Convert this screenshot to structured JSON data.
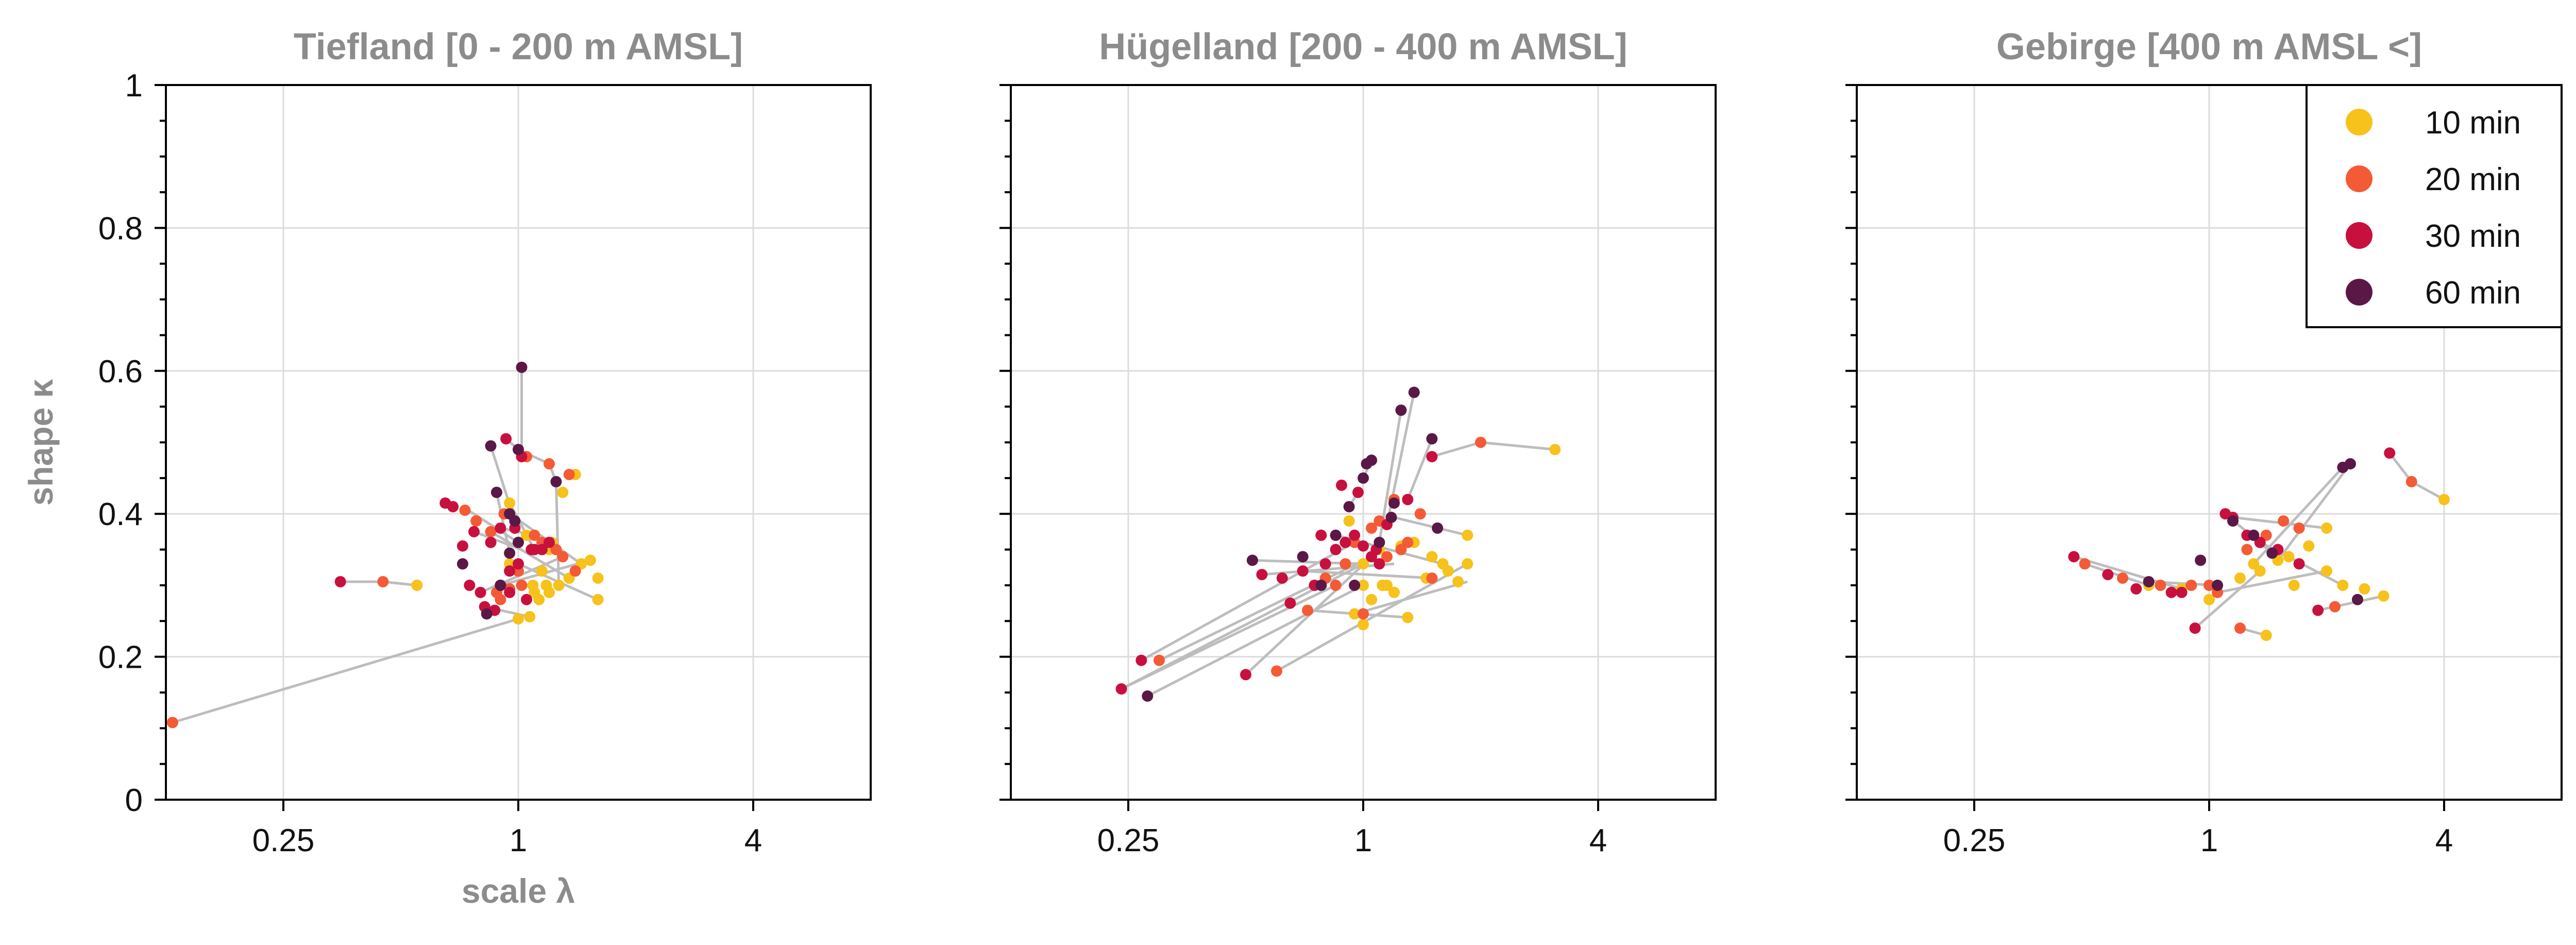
{
  "colors": {
    "10 min": "#f6c21b",
    "20 min": "#f45a35",
    "30 min": "#c8103f",
    "60 min": "#5a1846",
    "grid": "#dcdcdc",
    "link": "#bdbdbd",
    "title": "#8c8c8c"
  },
  "chart_data": [
    {
      "type": "scatter",
      "title": "Tiefland [0 - 200 m AMSL]",
      "xlabel": "scale λ",
      "ylabel": "shape κ",
      "xscale": "log2",
      "xlim": [
        0.125,
        8
      ],
      "ylim": [
        0,
        1
      ],
      "xticks": [
        0.25,
        1,
        4
      ],
      "xtick_labels": [
        "0.25",
        "1",
        "4"
      ],
      "yticks": [
        0,
        0.2,
        0.4,
        0.6,
        0.8,
        1
      ],
      "ytick_labels": [
        "0",
        "0.2",
        "0.4",
        "0.6",
        "0.8",
        "1"
      ],
      "grid": true,
      "series": [
        {
          "name": "10 min",
          "x": [
            1.0,
            1.07,
            1.13,
            1.2,
            1.27,
            1.35,
            1.45,
            1.53,
            1.15,
            1.09,
            1.22,
            1.3,
            0.95,
            1.05,
            1.6,
            1.4,
            0.55,
            1.2,
            0.95,
            1.6,
            1.1,
            1.18
          ],
          "y": [
            0.253,
            0.256,
            0.28,
            0.29,
            0.3,
            0.31,
            0.33,
            0.335,
            0.32,
            0.3,
            0.36,
            0.43,
            0.415,
            0.37,
            0.28,
            0.455,
            0.3,
            0.35,
            0.33,
            0.31,
            0.29,
            0.3
          ]
        },
        {
          "name": "20 min",
          "x": [
            0.13,
            0.45,
            0.73,
            0.78,
            0.85,
            0.9,
            1.0,
            1.1,
            1.25,
            1.2,
            1.35,
            1.05,
            0.92,
            1.3,
            1.15,
            1.4,
            0.95,
            1.02,
            0.88
          ],
          "y": [
            0.108,
            0.305,
            0.405,
            0.39,
            0.375,
            0.28,
            0.32,
            0.37,
            0.35,
            0.47,
            0.455,
            0.48,
            0.4,
            0.34,
            0.36,
            0.32,
            0.295,
            0.3,
            0.29
          ]
        },
        {
          "name": "30 min",
          "x": [
            0.35,
            0.65,
            0.68,
            0.72,
            0.75,
            0.8,
            0.82,
            0.87,
            0.9,
            0.95,
            1.0,
            1.05,
            1.1,
            1.15,
            1.2,
            0.98,
            1.02,
            0.93,
            0.85,
            0.77,
            0.9,
            1.08,
            0.95
          ],
          "y": [
            0.305,
            0.415,
            0.41,
            0.355,
            0.3,
            0.29,
            0.27,
            0.265,
            0.3,
            0.32,
            0.33,
            0.28,
            0.35,
            0.35,
            0.36,
            0.38,
            0.48,
            0.505,
            0.36,
            0.375,
            0.38,
            0.35,
            0.29
          ]
        },
        {
          "name": "60 min",
          "x": [
            0.83,
            0.9,
            0.95,
            1.0,
            1.02,
            0.98,
            0.72,
            0.88,
            0.95,
            1.25,
            1.0,
            0.85,
            0.9
          ],
          "y": [
            0.26,
            0.3,
            0.345,
            0.36,
            0.605,
            0.39,
            0.33,
            0.43,
            0.4,
            0.445,
            0.49,
            0.495,
            0.3
          ]
        }
      ],
      "links": [
        [
          [
            0.13,
            0.108
          ],
          [
            1.0,
            0.253
          ]
        ],
        [
          [
            1.02,
            0.605
          ],
          [
            1.02,
            0.48
          ]
        ],
        [
          [
            0.45,
            0.305
          ],
          [
            0.55,
            0.3
          ]
        ],
        [
          [
            0.35,
            0.305
          ],
          [
            0.45,
            0.305
          ]
        ],
        [
          [
            0.72,
            0.41
          ],
          [
            1.0,
            0.36
          ]
        ],
        [
          [
            1.2,
            0.47
          ],
          [
            1.25,
            0.445
          ]
        ],
        [
          [
            1.0,
            0.49
          ],
          [
            1.2,
            0.47
          ]
        ],
        [
          [
            1.25,
            0.445
          ],
          [
            1.27,
            0.3
          ]
        ],
        [
          [
            0.85,
            0.375
          ],
          [
            1.35,
            0.31
          ]
        ],
        [
          [
            0.9,
            0.3
          ],
          [
            1.53,
            0.335
          ]
        ],
        [
          [
            0.95,
            0.4
          ],
          [
            1.45,
            0.33
          ]
        ],
        [
          [
            0.8,
            0.29
          ],
          [
            1.3,
            0.34
          ]
        ],
        [
          [
            0.82,
            0.27
          ],
          [
            1.07,
            0.256
          ]
        ],
        [
          [
            1.0,
            0.33
          ],
          [
            1.6,
            0.28
          ]
        ],
        [
          [
            0.88,
            0.43
          ],
          [
            0.95,
            0.345
          ]
        ],
        [
          [
            0.93,
            0.505
          ],
          [
            1.05,
            0.48
          ]
        ],
        [
          [
            0.85,
            0.495
          ],
          [
            0.98,
            0.39
          ]
        ],
        [
          [
            0.77,
            0.375
          ],
          [
            1.02,
            0.35
          ]
        ],
        [
          [
            0.9,
            0.38
          ],
          [
            1.1,
            0.37
          ]
        ],
        [
          [
            0.95,
            0.415
          ],
          [
            1.1,
            0.35
          ]
        ]
      ]
    },
    {
      "type": "scatter",
      "title": "Hügelland [200 - 400 m AMSL]",
      "xlabel": "",
      "ylabel": "",
      "xscale": "log2",
      "xlim": [
        0.125,
        8
      ],
      "ylim": [
        0,
        1
      ],
      "xticks": [
        0.25,
        1,
        4
      ],
      "xtick_labels": [
        "0.25",
        "1",
        "4"
      ],
      "yticks": [
        0,
        0.2,
        0.4,
        0.6,
        0.8,
        1
      ],
      "ytick_labels": [],
      "grid": true,
      "series": [
        {
          "name": "10 min",
          "x": [
            0.95,
            1.0,
            1.05,
            1.12,
            1.2,
            1.3,
            1.45,
            1.6,
            1.75,
            1.85,
            1.0,
            1.1,
            1.25,
            1.5,
            1.65,
            0.92,
            1.15,
            3.1,
            1.35,
            1.0,
            1.85
          ],
          "y": [
            0.26,
            0.245,
            0.28,
            0.3,
            0.29,
            0.255,
            0.31,
            0.33,
            0.305,
            0.37,
            0.33,
            0.35,
            0.355,
            0.34,
            0.32,
            0.39,
            0.3,
            0.49,
            0.36,
            0.3,
            0.33
          ]
        },
        {
          "name": "20 min",
          "x": [
            0.3,
            0.6,
            0.72,
            0.85,
            0.95,
            1.05,
            1.1,
            1.2,
            1.4,
            1.5,
            2.0,
            1.3,
            0.9,
            1.25,
            1.15,
            1.0,
            0.8
          ],
          "y": [
            0.195,
            0.18,
            0.265,
            0.3,
            0.36,
            0.38,
            0.39,
            0.42,
            0.4,
            0.31,
            0.5,
            0.36,
            0.33,
            0.35,
            0.34,
            0.26,
            0.31
          ]
        },
        {
          "name": "30 min",
          "x": [
            0.24,
            0.27,
            0.5,
            0.55,
            0.62,
            0.7,
            0.75,
            0.8,
            0.85,
            0.9,
            0.95,
            1.0,
            1.05,
            1.1,
            1.15,
            1.3,
            1.5,
            0.88,
            0.97,
            0.78,
            1.08,
            0.65
          ],
          "y": [
            0.155,
            0.195,
            0.175,
            0.315,
            0.31,
            0.32,
            0.3,
            0.33,
            0.35,
            0.36,
            0.37,
            0.355,
            0.34,
            0.33,
            0.385,
            0.42,
            0.48,
            0.44,
            0.43,
            0.37,
            0.35,
            0.275
          ]
        },
        {
          "name": "60 min",
          "x": [
            0.28,
            0.52,
            0.7,
            0.78,
            0.85,
            0.92,
            1.0,
            1.05,
            1.1,
            1.18,
            1.25,
            1.35,
            1.5,
            1.55,
            0.95,
            1.02,
            1.2
          ],
          "y": [
            0.145,
            0.335,
            0.34,
            0.3,
            0.37,
            0.41,
            0.45,
            0.475,
            0.36,
            0.395,
            0.545,
            0.57,
            0.505,
            0.38,
            0.3,
            0.47,
            0.415
          ]
        }
      ],
      "links": [
        [
          [
            0.24,
            0.155
          ],
          [
            0.85,
            0.3
          ]
        ],
        [
          [
            0.24,
            0.155
          ],
          [
            1.0,
            0.33
          ]
        ],
        [
          [
            0.27,
            0.195
          ],
          [
            0.95,
            0.36
          ]
        ],
        [
          [
            0.3,
            0.195
          ],
          [
            1.05,
            0.34
          ]
        ],
        [
          [
            0.28,
            0.145
          ],
          [
            1.0,
            0.3
          ]
        ],
        [
          [
            0.5,
            0.175
          ],
          [
            1.1,
            0.35
          ]
        ],
        [
          [
            0.55,
            0.315
          ],
          [
            1.2,
            0.33
          ]
        ],
        [
          [
            0.6,
            0.18
          ],
          [
            1.85,
            0.33
          ]
        ],
        [
          [
            0.52,
            0.335
          ],
          [
            1.0,
            0.33
          ]
        ],
        [
          [
            0.7,
            0.32
          ],
          [
            1.5,
            0.31
          ]
        ],
        [
          [
            1.25,
            0.545
          ],
          [
            1.1,
            0.36
          ]
        ],
        [
          [
            1.35,
            0.57
          ],
          [
            1.15,
            0.385
          ]
        ],
        [
          [
            1.5,
            0.505
          ],
          [
            1.3,
            0.42
          ]
        ],
        [
          [
            2.0,
            0.5
          ],
          [
            3.1,
            0.49
          ]
        ],
        [
          [
            1.5,
            0.48
          ],
          [
            2.0,
            0.5
          ]
        ],
        [
          [
            1.05,
            0.475
          ],
          [
            1.0,
            0.45
          ]
        ],
        [
          [
            0.92,
            0.41
          ],
          [
            0.97,
            0.43
          ]
        ],
        [
          [
            0.95,
            0.26
          ],
          [
            1.85,
            0.305
          ]
        ],
        [
          [
            0.72,
            0.265
          ],
          [
            1.3,
            0.255
          ]
        ],
        [
          [
            0.85,
            0.37
          ],
          [
            1.6,
            0.33
          ]
        ],
        [
          [
            1.2,
            0.395
          ],
          [
            1.85,
            0.37
          ]
        ]
      ]
    },
    {
      "type": "scatter",
      "title": "Gebirge [400 m AMSL <]",
      "xlabel": "",
      "ylabel": "",
      "xscale": "log2",
      "xlim": [
        0.125,
        8
      ],
      "ylim": [
        0,
        1
      ],
      "xticks": [
        0.25,
        1,
        4
      ],
      "xtick_labels": [
        "0.25",
        "1",
        "4"
      ],
      "yticks": [
        0,
        0.2,
        0.4,
        0.6,
        0.8,
        1
      ],
      "ytick_labels": [],
      "grid": true,
      "legend": {
        "placement": "top-right",
        "entries": [
          "10 min",
          "20 min",
          "30 min",
          "60 min"
        ]
      },
      "series": [
        {
          "name": "10 min",
          "x": [
            0.7,
            0.85,
            1.0,
            1.2,
            1.35,
            1.5,
            1.65,
            1.8,
            2.0,
            2.2,
            2.5,
            2.8,
            1.4,
            1.6,
            2.0,
            1.3,
            4.0
          ],
          "y": [
            0.3,
            0.295,
            0.28,
            0.31,
            0.32,
            0.335,
            0.3,
            0.355,
            0.38,
            0.3,
            0.295,
            0.285,
            0.23,
            0.34,
            0.32,
            0.33,
            0.42
          ]
        },
        {
          "name": "20 min",
          "x": [
            0.48,
            0.6,
            0.75,
            0.9,
            1.05,
            1.2,
            1.4,
            1.55,
            1.7,
            2.1,
            3.3,
            1.0,
            1.25
          ],
          "y": [
            0.33,
            0.31,
            0.3,
            0.3,
            0.29,
            0.24,
            0.37,
            0.39,
            0.38,
            0.27,
            0.445,
            0.3,
            0.35
          ]
        },
        {
          "name": "30 min",
          "x": [
            0.45,
            0.55,
            0.65,
            0.8,
            0.92,
            1.1,
            1.25,
            1.35,
            1.5,
            1.7,
            1.9,
            2.9,
            0.85,
            1.15
          ],
          "y": [
            0.34,
            0.315,
            0.295,
            0.29,
            0.24,
            0.4,
            0.37,
            0.36,
            0.35,
            0.33,
            0.265,
            0.485,
            0.29,
            0.395
          ]
        },
        {
          "name": "60 min",
          "x": [
            0.95,
            1.15,
            1.3,
            1.45,
            2.2,
            2.3,
            1.05,
            0.7,
            2.4
          ],
          "y": [
            0.335,
            0.39,
            0.37,
            0.345,
            0.465,
            0.47,
            0.3,
            0.305,
            0.28
          ]
        }
      ],
      "links": [
        [
          [
            0.45,
            0.34
          ],
          [
            0.85,
            0.295
          ]
        ],
        [
          [
            0.48,
            0.33
          ],
          [
            0.7,
            0.3
          ]
        ],
        [
          [
            0.92,
            0.24
          ],
          [
            1.35,
            0.32
          ]
        ],
        [
          [
            1.2,
            0.24
          ],
          [
            1.4,
            0.23
          ]
        ],
        [
          [
            2.2,
            0.465
          ],
          [
            1.3,
            0.33
          ]
        ],
        [
          [
            2.3,
            0.47
          ],
          [
            1.5,
            0.335
          ]
        ],
        [
          [
            2.9,
            0.485
          ],
          [
            3.3,
            0.445
          ]
        ],
        [
          [
            3.3,
            0.445
          ],
          [
            4.0,
            0.42
          ]
        ],
        [
          [
            1.15,
            0.395
          ],
          [
            2.0,
            0.38
          ]
        ],
        [
          [
            1.05,
            0.29
          ],
          [
            2.0,
            0.32
          ]
        ],
        [
          [
            1.25,
            0.37
          ],
          [
            2.2,
            0.3
          ]
        ],
        [
          [
            1.9,
            0.265
          ],
          [
            2.8,
            0.285
          ]
        ],
        [
          [
            1.1,
            0.4
          ],
          [
            1.45,
            0.345
          ]
        ],
        [
          [
            0.7,
            0.305
          ],
          [
            1.05,
            0.3
          ]
        ]
      ]
    }
  ]
}
